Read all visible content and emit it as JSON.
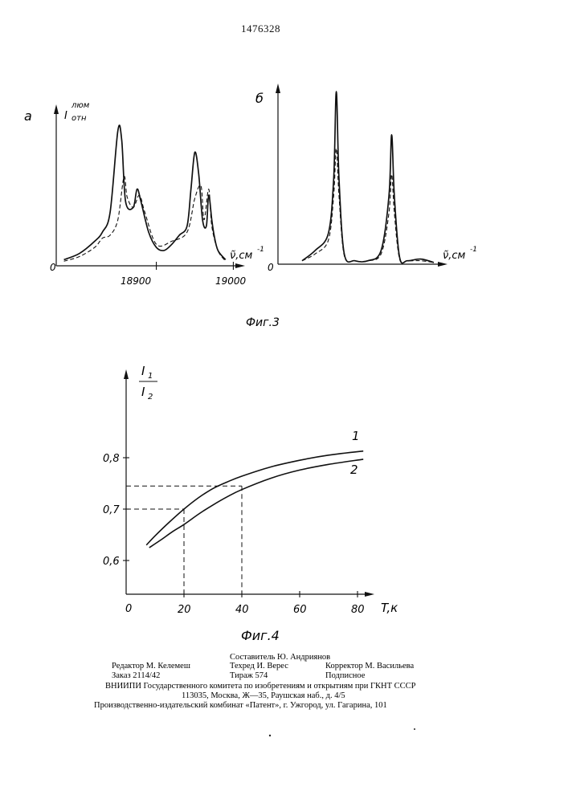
{
  "header": {
    "patent_number": "1476328"
  },
  "figure3": {
    "caption": "Фиг.3",
    "panel_a": {
      "panel_label": "а",
      "y_label_main": "I",
      "y_label_sup": "люм",
      "y_label_sub": "отн",
      "x_label": "ν̃,см",
      "x_label_exp": "-1",
      "origin": "0",
      "ticks": [
        "18900",
        "19000"
      ]
    },
    "panel_b": {
      "panel_label": "б",
      "x_label": "ν̃,см",
      "x_label_exp": "-1",
      "origin": "0"
    }
  },
  "figure4": {
    "caption": "Фиг.4",
    "y_label_num": "I",
    "y_label_num_sub": "1",
    "y_label_den": "I",
    "y_label_den_sub": "2",
    "x_label": "T,к",
    "origin": "0",
    "x_ticks": [
      "20",
      "40",
      "60",
      "80"
    ],
    "y_ticks": [
      "0,6",
      "0,7",
      "0,8"
    ],
    "curve_labels": [
      "1",
      "2"
    ]
  },
  "chart_data": [
    {
      "type": "line",
      "title": "",
      "xlabel": "ν̃, см-1",
      "ylabel": "I люм отн",
      "xlim": [
        18770,
        19010
      ],
      "x_ticks": [
        18900,
        19000
      ],
      "series": [
        {
          "x": [
            18780,
            18800,
            18820,
            18830,
            18840,
            18850,
            18855,
            18860,
            18870,
            18875,
            18880,
            18890,
            18900,
            18910,
            18920,
            18930,
            18940,
            18945,
            18950,
            18955,
            18960,
            18965,
            18968,
            18972,
            18975,
            18980,
            18990
          ],
          "y": [
            0.04,
            0.08,
            0.16,
            0.22,
            0.35,
            0.88,
            0.82,
            0.42,
            0.38,
            0.5,
            0.42,
            0.22,
            0.12,
            0.1,
            0.14,
            0.2,
            0.26,
            0.5,
            0.74,
            0.6,
            0.3,
            0.26,
            0.46,
            0.3,
            0.2,
            0.1,
            0.04
          ]
        },
        {
          "x": [
            18780,
            18800,
            18820,
            18830,
            18840,
            18850,
            18858,
            18862,
            18870,
            18878,
            18885,
            18900,
            18920,
            18940,
            18950,
            18958,
            18962,
            18968,
            18972,
            18980,
            18990
          ],
          "y": [
            0.03,
            0.06,
            0.12,
            0.18,
            0.2,
            0.3,
            0.58,
            0.45,
            0.38,
            0.46,
            0.35,
            0.14,
            0.16,
            0.22,
            0.44,
            0.52,
            0.3,
            0.5,
            0.26,
            0.1,
            0.03
          ]
        }
      ]
    },
    {
      "type": "line",
      "title": "",
      "xlabel": "ν̃, см-1",
      "series": [
        {
          "x": [
            0,
            0.1,
            0.2,
            0.24,
            0.26,
            0.28,
            0.32,
            0.4,
            0.5,
            0.6,
            0.66,
            0.68,
            0.7,
            0.74,
            0.8,
            0.9,
            1.0
          ],
          "y": [
            0.02,
            0.08,
            0.18,
            0.5,
            1.0,
            0.5,
            0.06,
            0.02,
            0.02,
            0.08,
            0.4,
            0.75,
            0.4,
            0.04,
            0.02,
            0.03,
            0.01
          ]
        },
        {
          "x": [
            0,
            0.1,
            0.2,
            0.24,
            0.26,
            0.28,
            0.32,
            0.4,
            0.5,
            0.6,
            0.66,
            0.68,
            0.7,
            0.74,
            0.8,
            0.9,
            1.0
          ],
          "y": [
            0.02,
            0.06,
            0.14,
            0.4,
            0.67,
            0.4,
            0.05,
            0.02,
            0.02,
            0.06,
            0.3,
            0.52,
            0.3,
            0.03,
            0.02,
            0.02,
            0.01
          ]
        }
      ]
    },
    {
      "type": "line",
      "title": "",
      "xlabel": "T, к",
      "ylabel": "I1/I2",
      "xlim": [
        0,
        85
      ],
      "ylim": [
        0.55,
        0.85
      ],
      "x_ticks": [
        20,
        40,
        60,
        80
      ],
      "y_ticks": [
        0.6,
        0.7,
        0.8
      ],
      "series": [
        {
          "name": "1",
          "x": [
            7,
            10,
            15,
            20,
            25,
            30,
            35,
            40,
            50,
            60,
            70,
            82
          ],
          "y": [
            0.63,
            0.648,
            0.675,
            0.7,
            0.722,
            0.74,
            0.753,
            0.764,
            0.782,
            0.795,
            0.805,
            0.813
          ]
        },
        {
          "name": "2",
          "x": [
            8,
            12,
            16,
            20,
            25,
            30,
            35,
            40,
            50,
            60,
            70,
            82
          ],
          "y": [
            0.625,
            0.64,
            0.656,
            0.67,
            0.69,
            0.708,
            0.724,
            0.738,
            0.76,
            0.776,
            0.787,
            0.797
          ]
        }
      ],
      "guides": [
        {
          "x": 20,
          "y": 0.7
        },
        {
          "x": 40,
          "y": 0.745
        }
      ]
    }
  ],
  "imprint": {
    "compiler": "Составитель Ю. Андриянов",
    "editor": "Редактор М. Келемеш",
    "techred": "Техред И. Верес",
    "corrector": "Корректор М. Васильева",
    "order": "Заказ 2114/42",
    "circulation": "Тираж 574",
    "subscription": "Подписное",
    "line1": "ВНИИПИ Государственного комитета по изобретениям и открытиям при ГКНТ СССР",
    "line2": "113035, Москва, Ж—35, Раушская наб., д. 4/5",
    "line3": "Производственно-издательский комбинат «Патент», г. Ужгород, ул. Гагарина, 101"
  }
}
